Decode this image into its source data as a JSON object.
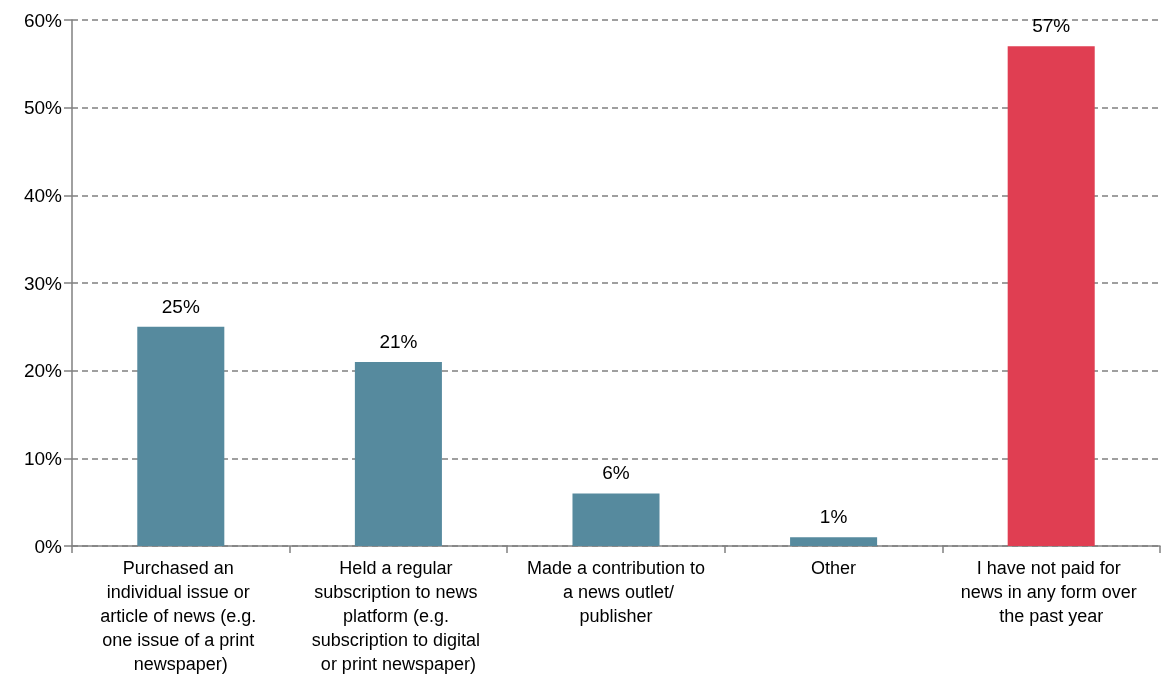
{
  "chart_data": {
    "type": "bar",
    "categories": [
      "Purchased an individual issue or article of news (e.g. one issue of a print newspaper)",
      "Held a regular subscription to news platform (e.g. subscription to digital or print newspaper)",
      "Made a contribution to a news outlet/publisher",
      "Other",
      "I have not paid for news in any form over the past year"
    ],
    "values": [
      25,
      21,
      6,
      1,
      57
    ],
    "colors": [
      "#568a9e",
      "#568a9e",
      "#568a9e",
      "#568a9e",
      "#e03e52"
    ],
    "value_labels": [
      "25%",
      "21%",
      "6%",
      "1%",
      "57%"
    ],
    "ylim": [
      0,
      60
    ],
    "yticks": [
      {
        "value": 0,
        "label": "0%"
      },
      {
        "value": 10,
        "label": "10%"
      },
      {
        "value": 20,
        "label": "20%"
      },
      {
        "value": 30,
        "label": "30%"
      },
      {
        "value": 40,
        "label": "40%"
      },
      {
        "value": 50,
        "label": "50%"
      },
      {
        "value": 60,
        "label": "60%"
      }
    ],
    "grid": "y"
  }
}
